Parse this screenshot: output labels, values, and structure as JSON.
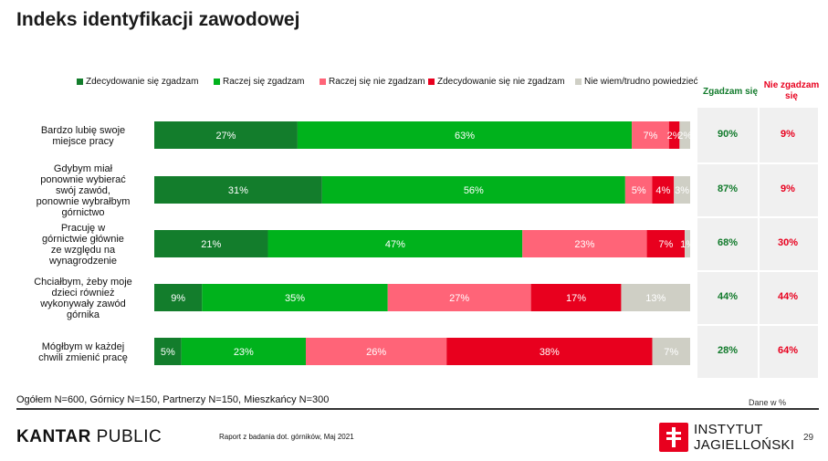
{
  "title": "Indeks identyfikacji zawodowej",
  "colors": {
    "strongly_agree": "#137d2c",
    "agree": "#00b21c",
    "disagree": "#ff6478",
    "strongly_disagree": "#e8001e",
    "dont_know": "#cfcfc5",
    "sum_agree": "#117a2b",
    "sum_disagree": "#e8001e"
  },
  "chart_data": {
    "type": "bar",
    "orientation": "horizontal",
    "stacked": true,
    "categories": [
      "Bardzo lubię swoje miejsce pracy",
      "Gdybym miał ponownie wybierać swój zawód, ponownie wybrałbym górnictwo",
      "Pracuję w górnictwie głównie ze względu na wynagrodzenie",
      "Chciałbym, żeby moje dzieci również wykonywały zawód górnika",
      "Mógłbym w każdej chwili zmienić pracę"
    ],
    "series": [
      {
        "name": "Zdecydowanie się zgadzam",
        "values": [
          27,
          31,
          21,
          9,
          5
        ]
      },
      {
        "name": "Raczej się zgadzam",
        "values": [
          63,
          56,
          47,
          35,
          23
        ]
      },
      {
        "name": "Raczej się nie zgadzam",
        "values": [
          7,
          5,
          23,
          27,
          26
        ]
      },
      {
        "name": "Zdecydowanie się nie zgadzam",
        "values": [
          2,
          4,
          7,
          17,
          38
        ]
      },
      {
        "name": "Nie wiem/trudno powiedzieć",
        "values": [
          2,
          3,
          1,
          13,
          7
        ]
      }
    ],
    "legend_position": "top",
    "summary": {
      "agree_header": "Zgadzam się",
      "disagree_header": "Nie zgadzam się",
      "agree": [
        "90%",
        "87%",
        "68%",
        "44%",
        "28%"
      ],
      "disagree": [
        "9%",
        "9%",
        "30%",
        "44%",
        "64%"
      ]
    }
  },
  "footer": {
    "sample_note": "Ogółem N=600, Górnicy N=150, Partnerzy N=150, Mieszkańcy N=300",
    "unit_note": "Dane w %",
    "brand_bold": "KANTAR",
    "brand_rest": " PUBLIC",
    "report": "Raport z badania dot. górników, Maj 2021",
    "institute_line1": "INSTYTUT",
    "institute_line2": "JAGIELLOŃSKI",
    "page": "29"
  }
}
